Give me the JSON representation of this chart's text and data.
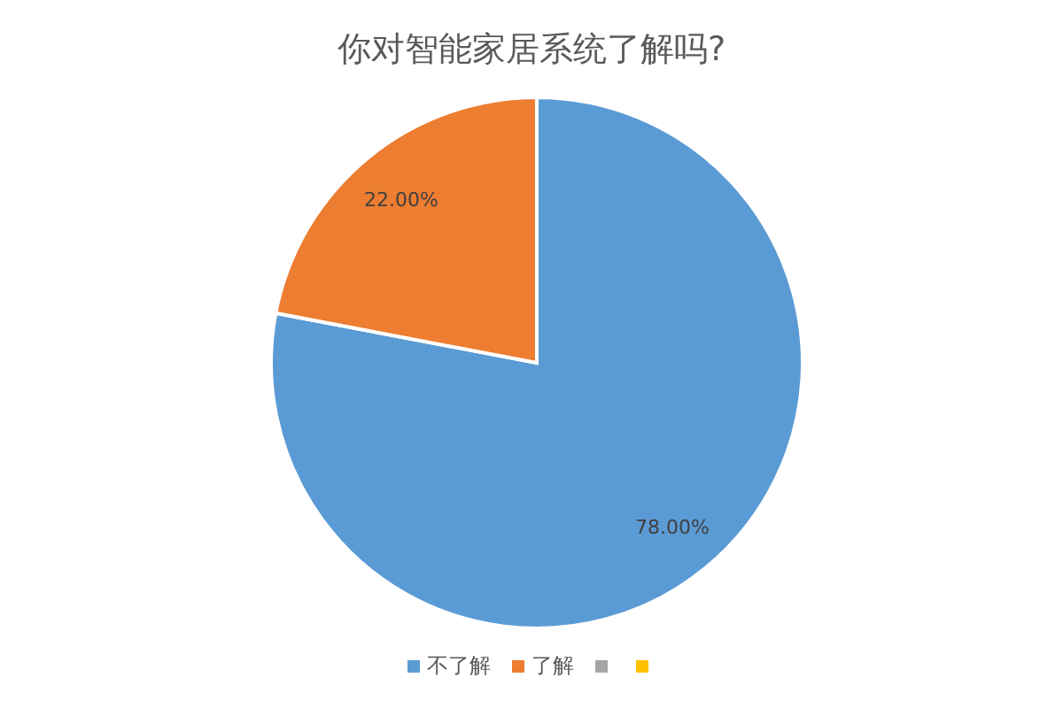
{
  "chart_data": {
    "type": "pie",
    "title": "你对智能家居系统了解吗?",
    "categories": [
      "不了解",
      "了解",
      null,
      null
    ],
    "values": [
      78,
      22,
      0,
      0
    ],
    "colors": [
      "#5b9bd5",
      "#ed7d31",
      "#a5a5a5",
      "#ffc000"
    ],
    "value_labels": [
      "78.00%",
      "22.00%",
      null,
      null
    ],
    "legend": "bottom"
  }
}
